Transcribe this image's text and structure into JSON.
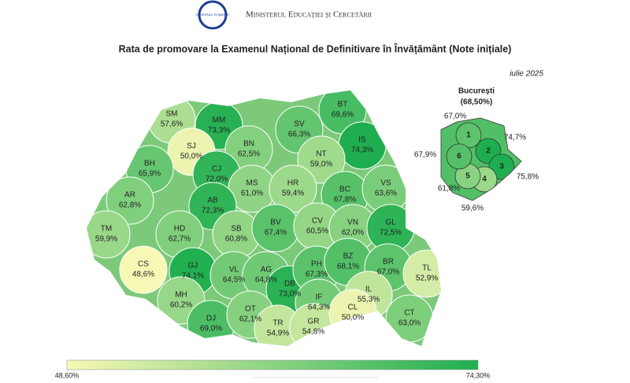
{
  "header": {
    "logo_text": "GUVERNUL ROMÂNIEI",
    "ministry": "Ministerul Educației și Cercetării"
  },
  "chart_data": {
    "type": "choropleth",
    "title": "Rata de promovare la Examenul Național de Definitivare în Învățământ (Note inițiale)",
    "subtitle": "iulie 2025",
    "categories": [
      "SM",
      "MM",
      "BT",
      "SV",
      "SJ",
      "BN",
      "IS",
      "NT",
      "BH",
      "CJ",
      "MS",
      "HR",
      "BC",
      "VS",
      "AR",
      "AB",
      "TM",
      "HD",
      "SB",
      "BV",
      "CV",
      "VN",
      "GL",
      "CS",
      "GJ",
      "VL",
      "AG",
      "DB",
      "PH",
      "BZ",
      "BR",
      "TL",
      "MH",
      "DJ",
      "OT",
      "IF",
      "IL",
      "TR",
      "GR",
      "CL",
      "CT"
    ],
    "values": [
      57.6,
      73.3,
      69.6,
      66.3,
      50.0,
      62.5,
      74.3,
      59.0,
      65.9,
      72.0,
      61.0,
      59.4,
      67.8,
      63.6,
      62.8,
      72.3,
      59.9,
      62.7,
      60.8,
      67.4,
      60.5,
      62.0,
      72.5,
      48.6,
      74.1,
      64.5,
      64.8,
      73.0,
      67.3,
      68.1,
      67.0,
      52.9,
      60.2,
      69.0,
      62.1,
      64.3,
      55.3,
      54.9,
      54.8,
      50.0,
      63.0
    ],
    "value_labels": [
      "57,6%",
      "73,3%",
      "69,6%",
      "66,3%",
      "50,0%",
      "62,5%",
      "74,3%",
      "59,0%",
      "65,9%",
      "72,0%",
      "61,0%",
      "59,4%",
      "67,8%",
      "63,6%",
      "62,8%",
      "72,3%",
      "59,9%",
      "62,7%",
      "60,8%",
      "67,4%",
      "60,5%",
      "62,0%",
      "72,5%",
      "48,6%",
      "74,1%",
      "64,5%",
      "64,8%",
      "73,0%",
      "67,3%",
      "68,1%",
      "67,0%",
      "52,9%",
      "60,2%",
      "69,0%",
      "62,1%",
      "64,3%",
      "55,3%",
      "54,9%",
      "54,8%",
      "50,0%",
      "63,0%"
    ],
    "bucharest": {
      "title": "București",
      "total": 68.5,
      "total_label": "(68,50%)",
      "sectors": [
        "1",
        "2",
        "3",
        "4",
        "5",
        "6"
      ],
      "values": [
        67.0,
        74.7,
        75.8,
        59.6,
        61.8,
        67.9
      ],
      "value_labels": [
        "67,0%",
        "74,7%",
        "75,8%",
        "59,6%",
        "61,8%",
        "67,9%"
      ]
    },
    "scale": {
      "min": 48.6,
      "max": 74.3,
      "min_label": "48,60%",
      "max_label": "74,30%",
      "colors": [
        "#f8f8b6",
        "#1fae4f"
      ]
    }
  }
}
